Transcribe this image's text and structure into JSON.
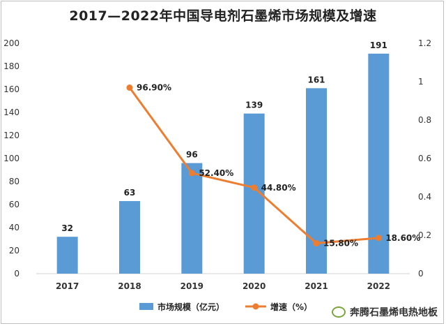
{
  "title": "2017—2022年中国导电剂石墨烯市场规模及增速",
  "brand_text": "奔腾石墨烯电热地板",
  "chart_data": {
    "type": "bar",
    "categories": [
      "2017",
      "2018",
      "2019",
      "2020",
      "2021",
      "2022"
    ],
    "series": [
      {
        "name": "市场规模（亿元）",
        "kind": "bar",
        "axis": "left",
        "color": "#5b9bd5",
        "values": [
          32,
          63,
          96,
          139,
          161,
          191
        ],
        "labels": [
          "32",
          "63",
          "96",
          "139",
          "161",
          "191"
        ]
      },
      {
        "name": "增速（%）",
        "kind": "line",
        "axis": "right",
        "color": "#ed7d31",
        "values": [
          null,
          0.969,
          0.524,
          0.448,
          0.158,
          0.186
        ],
        "labels": [
          "",
          "96.90%",
          "52.40%",
          "44.80%",
          "15.80%",
          "18.60%"
        ]
      }
    ],
    "y_left": {
      "min": 0,
      "max": 200,
      "step": 20
    },
    "y_right": {
      "min": 0,
      "max": 1.2,
      "step": 0.2
    },
    "grid": false,
    "legend_position": "bottom"
  }
}
